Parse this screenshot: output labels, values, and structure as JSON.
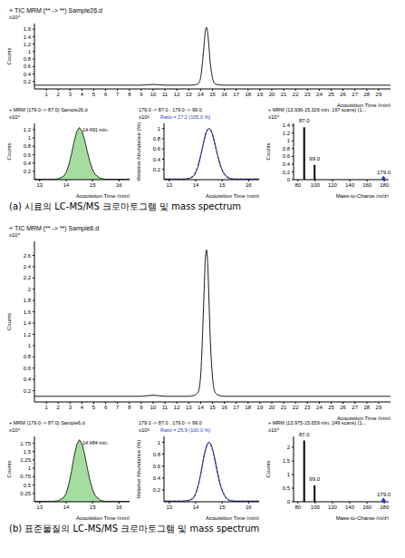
{
  "chart_data": [
    {
      "type": "line",
      "title": "+ TIC MRM (** -> **) Sample26.d",
      "y_multiplier": "x10⁴",
      "ylabel": "Counts",
      "xlabel": "Acquisition Time (min)",
      "x": [
        0,
        1,
        2,
        3,
        4,
        5,
        6,
        7,
        8,
        9,
        10,
        11,
        12,
        13,
        13.5,
        13.8,
        14,
        14.2,
        14.3,
        14.4,
        14.5,
        14.6,
        14.7,
        14.8,
        15,
        15.2,
        15.5,
        16,
        17,
        18,
        19,
        20,
        21,
        22,
        23,
        24,
        25,
        26,
        27,
        28,
        29,
        30
      ],
      "values": [
        0.1,
        0.1,
        0.1,
        0.1,
        0.1,
        0.1,
        0.1,
        0.1,
        0.1,
        0.1,
        0.12,
        0.1,
        0.1,
        0.1,
        0.11,
        0.14,
        0.3,
        0.85,
        1.2,
        1.55,
        1.65,
        1.5,
        1.15,
        0.75,
        0.3,
        0.14,
        0.11,
        0.1,
        0.1,
        0.1,
        0.1,
        0.1,
        0.1,
        0.1,
        0.1,
        0.1,
        0.1,
        0.1,
        0.1,
        0.1,
        0.1,
        0.1
      ],
      "color": "#000000",
      "xlim": [
        0,
        30
      ],
      "xticks": [
        1,
        2,
        3,
        4,
        5,
        6,
        7,
        8,
        9,
        10,
        11,
        12,
        13,
        14,
        15,
        16,
        17,
        18,
        19,
        20,
        21,
        22,
        23,
        24,
        25,
        26,
        27,
        28,
        29
      ],
      "ylim": [
        0,
        1.75
      ],
      "yticks": [
        0.2,
        0.4,
        0.6,
        0.8,
        1,
        1.2,
        1.4,
        1.6
      ]
    },
    {
      "type": "area",
      "title": "+ MRM (179.0 -> 87.0) Sample26.d",
      "annotation": "14.491 min.",
      "y_multiplier": "x10⁴",
      "ylabel": "Counts",
      "xlabel": "Acquisition Time (min)",
      "x": [
        12.8,
        13.3,
        13.5,
        13.7,
        13.9,
        14.0,
        14.1,
        14.2,
        14.3,
        14.4,
        14.5,
        14.6,
        14.7,
        14.8,
        14.9,
        15.0,
        15.1,
        15.3,
        15.5,
        15.8,
        16.2,
        16.4
      ],
      "values": [
        0.01,
        0.01,
        0.01,
        0.02,
        0.08,
        0.17,
        0.35,
        0.61,
        0.91,
        1.15,
        1.25,
        1.17,
        0.95,
        0.68,
        0.43,
        0.24,
        0.12,
        0.03,
        0.01,
        0.01,
        0.01,
        0.01
      ],
      "color": "#a6dca0",
      "xlim": [
        12.8,
        16.4
      ],
      "xticks": [
        13,
        14,
        15,
        16
      ],
      "ylim": [
        0,
        1.35
      ],
      "yticks": [
        0.2,
        0.4,
        0.6,
        0.8,
        1,
        1.2
      ]
    },
    {
      "type": "line",
      "title": "179.0 -> 87.0 , 179.0 -> 99.0",
      "annotation": "Ratio = 27.2 (105.0 %)",
      "y_multiplier": "x10²",
      "ylabel": "Relative Abundance (%)",
      "xlabel": "Acquisition Time (min)",
      "x": [
        12.8,
        13.3,
        13.5,
        13.7,
        13.9,
        14.0,
        14.1,
        14.2,
        14.3,
        14.4,
        14.5,
        14.6,
        14.7,
        14.8,
        14.9,
        15.0,
        15.1,
        15.3,
        15.5,
        15.8,
        16.2,
        16.4
      ],
      "series": [
        {
          "color": "#000000",
          "values": [
            0.01,
            0.01,
            0.01,
            0.02,
            0.06,
            0.14,
            0.28,
            0.49,
            0.73,
            0.92,
            1.0,
            0.94,
            0.76,
            0.54,
            0.34,
            0.19,
            0.1,
            0.02,
            0.01,
            0.01,
            0.01,
            0.01
          ]
        },
        {
          "color": "#2a3fbf",
          "line_style": "dashed",
          "values": [
            0.01,
            0.01,
            0.01,
            0.02,
            0.07,
            0.15,
            0.3,
            0.5,
            0.74,
            0.93,
            0.99,
            0.93,
            0.75,
            0.53,
            0.33,
            0.19,
            0.1,
            0.03,
            0.01,
            0.01,
            0.01,
            0.01
          ]
        }
      ],
      "xlim": [
        12.8,
        16.4
      ],
      "xticks": [
        13,
        14,
        15,
        16
      ],
      "ylim": [
        0,
        1.1
      ],
      "yticks": [
        0.2,
        0.4,
        0.6,
        0.8,
        1
      ]
    },
    {
      "type": "bar",
      "title": "+ MRM (13.936-15.326 min, 197 scans) (1...",
      "y_multiplier": "x10⁴",
      "ylabel": "Counts",
      "xlabel": "Mass-to-Charge (m/z)",
      "x": [
        87,
        99,
        179
      ],
      "values": [
        1.35,
        0.38,
        0.03
      ],
      "peak_labels": [
        "87.0",
        "99.0",
        "179.0"
      ],
      "precursor_mz": 179,
      "color": "#000000",
      "xlim": [
        75,
        185
      ],
      "xticks": [
        80,
        100,
        120,
        140,
        160,
        180
      ],
      "ylim": [
        0,
        1.45
      ],
      "yticks": [
        0,
        0.2,
        0.4,
        0.6,
        0.8,
        1,
        1.2,
        1.4
      ]
    },
    {
      "type": "line",
      "title": "+ TIC MRM (** -> **) Sample6.d",
      "y_multiplier": "x10⁴",
      "ylabel": "Counts",
      "xlabel": "Acquisition Time (min)",
      "x": [
        0,
        1,
        2,
        3,
        4,
        5,
        6,
        7,
        8,
        9,
        10,
        11,
        12,
        13,
        13.5,
        13.8,
        14,
        14.2,
        14.3,
        14.4,
        14.5,
        14.6,
        14.7,
        14.8,
        15,
        15.2,
        15.5,
        16,
        17,
        18,
        19,
        20,
        21,
        22,
        23,
        24,
        25,
        26,
        27,
        28,
        29,
        30
      ],
      "values": [
        0.1,
        0.1,
        0.1,
        0.1,
        0.1,
        0.1,
        0.1,
        0.1,
        0.1,
        0.1,
        0.12,
        0.1,
        0.1,
        0.1,
        0.12,
        0.18,
        0.45,
        1.4,
        2.0,
        2.55,
        2.7,
        2.45,
        1.85,
        1.2,
        0.45,
        0.18,
        0.12,
        0.1,
        0.1,
        0.1,
        0.1,
        0.1,
        0.1,
        0.1,
        0.1,
        0.1,
        0.1,
        0.1,
        0.1,
        0.1,
        0.1,
        0.1
      ],
      "color": "#000000",
      "xlim": [
        0,
        30
      ],
      "xticks": [
        1,
        2,
        3,
        4,
        5,
        6,
        7,
        8,
        9,
        10,
        11,
        12,
        13,
        14,
        15,
        16,
        17,
        18,
        19,
        20,
        21,
        22,
        23,
        24,
        25,
        26,
        27,
        28,
        29
      ],
      "ylim": [
        0,
        2.85
      ],
      "yticks": [
        0.2,
        0.4,
        0.6,
        0.8,
        1,
        1.2,
        1.4,
        1.6,
        1.8,
        2,
        2.2,
        2.4,
        2.6
      ]
    },
    {
      "type": "area",
      "title": "+ MRM (179.0 -> 87.0) Sample6.d",
      "annotation": "14.484 min.",
      "y_multiplier": "x10⁴",
      "ylabel": "Counts",
      "xlabel": "Acquisition Time (min)",
      "x": [
        12.8,
        13.3,
        13.5,
        13.7,
        13.9,
        14.0,
        14.1,
        14.2,
        14.3,
        14.4,
        14.5,
        14.6,
        14.7,
        14.8,
        14.9,
        15.0,
        15.1,
        15.3,
        15.5,
        15.8,
        16.2,
        16.4
      ],
      "values": [
        0.01,
        0.01,
        0.01,
        0.03,
        0.12,
        0.25,
        0.52,
        0.9,
        1.35,
        1.7,
        1.85,
        1.73,
        1.41,
        1.01,
        0.64,
        0.36,
        0.18,
        0.04,
        0.01,
        0.01,
        0.01,
        0.01
      ],
      "color": "#a6dca0",
      "xlim": [
        12.8,
        16.4
      ],
      "xticks": [
        13,
        14,
        15,
        16
      ],
      "ylim": [
        0,
        1.95
      ],
      "yticks": [
        0.25,
        0.5,
        0.75,
        1,
        1.25,
        1.5,
        1.75
      ]
    },
    {
      "type": "line",
      "title": "179.0 -> 87.0 , 179.0 -> 99.0",
      "annotation": "Ratio = 25.9 (100.0 %)",
      "y_multiplier": "x10²",
      "ylabel": "Relative Abundance (%)",
      "xlabel": "Acquisition Time (min)",
      "x": [
        12.8,
        13.3,
        13.5,
        13.7,
        13.9,
        14.0,
        14.1,
        14.2,
        14.3,
        14.4,
        14.5,
        14.6,
        14.7,
        14.8,
        14.9,
        15.0,
        15.1,
        15.3,
        15.5,
        15.8,
        16.2,
        16.4
      ],
      "series": [
        {
          "color": "#000000",
          "values": [
            0.01,
            0.01,
            0.01,
            0.02,
            0.06,
            0.14,
            0.28,
            0.49,
            0.73,
            0.92,
            1.0,
            0.94,
            0.76,
            0.54,
            0.34,
            0.19,
            0.1,
            0.02,
            0.01,
            0.01,
            0.01,
            0.01
          ]
        },
        {
          "color": "#2a3fbf",
          "line_style": "dashed",
          "values": [
            0.01,
            0.01,
            0.01,
            0.02,
            0.06,
            0.14,
            0.29,
            0.5,
            0.74,
            0.92,
            1.0,
            0.93,
            0.76,
            0.55,
            0.35,
            0.2,
            0.1,
            0.02,
            0.01,
            0.01,
            0.01,
            0.01
          ]
        }
      ],
      "xlim": [
        12.8,
        16.4
      ],
      "xticks": [
        13,
        14,
        15,
        16
      ],
      "ylim": [
        0,
        1.1
      ],
      "yticks": [
        0.2,
        0.4,
        0.6,
        0.8,
        1
      ]
    },
    {
      "type": "bar",
      "title": "+ MRM (13.975-15.659 min, 249 scans) (1...",
      "y_multiplier": "x10⁴",
      "ylabel": "Counts",
      "xlabel": "Mass-to-Charge (m/z)",
      "x": [
        87,
        99,
        179
      ],
      "values": [
        2.25,
        0.6,
        0.05
      ],
      "peak_labels": [
        "87.0",
        "99.0",
        "179.0"
      ],
      "precursor_mz": 179,
      "color": "#000000",
      "xlim": [
        75,
        185
      ],
      "xticks": [
        80,
        100,
        120,
        140,
        160,
        180
      ],
      "ylim": [
        0,
        2.4
      ],
      "yticks": [
        0,
        0.5,
        1,
        1.5,
        2
      ]
    }
  ],
  "captions": [
    "(a) 시료의 LC-MS/MS 크로마토그램 및 mass spectrum",
    "(b) 표준물질의 LC-MS/MS 크로마토그램 및 mass spectrum"
  ]
}
